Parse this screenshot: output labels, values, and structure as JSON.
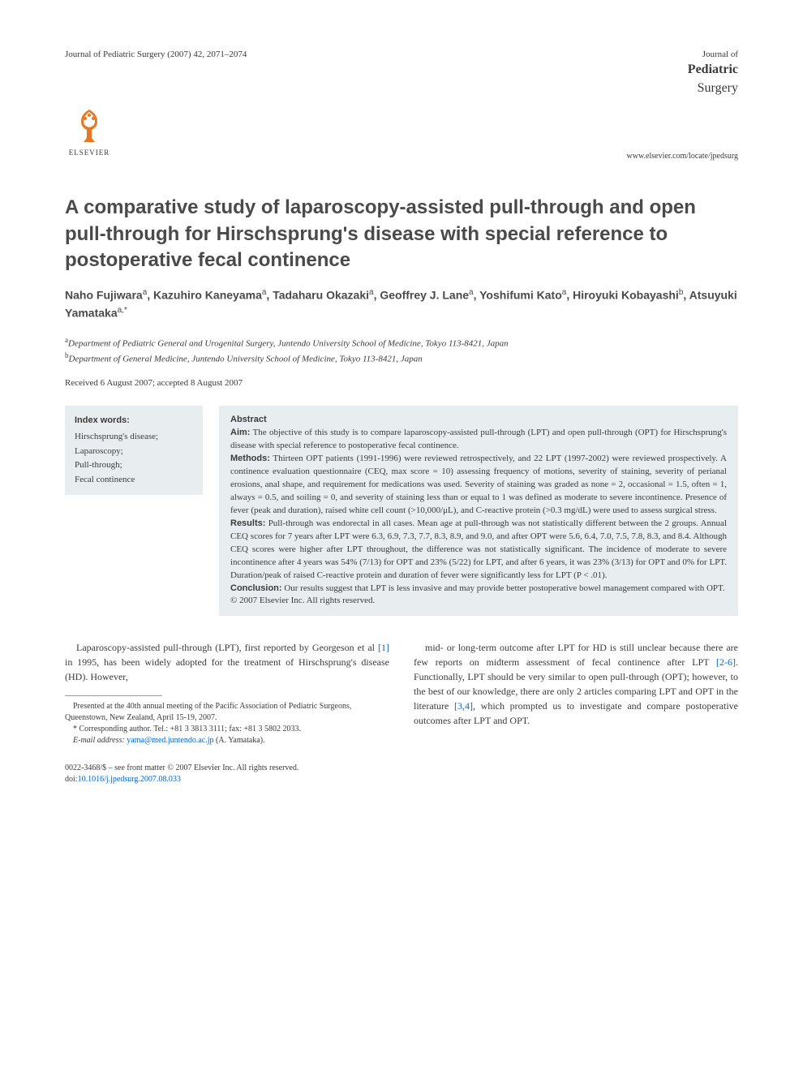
{
  "header": {
    "journal_ref": "Journal of Pediatric Surgery (2007) 42, 2071–2074",
    "journal_label_line1": "Journal of",
    "journal_label_line2": "Pediatric",
    "journal_label_line3": "Surgery",
    "publisher": "ELSEVIER",
    "locate_url": "www.elsevier.com/locate/jpedsurg"
  },
  "title": "A comparative study of laparoscopy-assisted pull-through and open pull-through for Hirschsprung's disease with special reference to postoperative fecal continence",
  "authors_html": "Naho Fujiwara<sup>a</sup>, Kazuhiro Kaneyama<sup>a</sup>, Tadaharu Okazaki<sup>a</sup>, Geoffrey J. Lane<sup>a</sup>, Yoshifumi Kato<sup>a</sup>, Hiroyuki Kobayashi<sup>b</sup>, Atsuyuki Yamataka<sup>a,*</sup>",
  "affiliations": [
    "Department of Pediatric General and Urogenital Surgery, Juntendo University School of Medicine, Tokyo 113-8421, Japan",
    "Department of General Medicine, Juntendo University School of Medicine, Tokyo 113-8421, Japan"
  ],
  "affiliation_markers": [
    "a",
    "b"
  ],
  "dates": "Received 6 August 2007; accepted 8 August 2007",
  "index": {
    "heading": "Index words:",
    "terms": [
      "Hirschsprung's disease;",
      "Laparoscopy;",
      "Pull-through;",
      "Fecal continence"
    ]
  },
  "abstract": {
    "heading": "Abstract",
    "aim_label": "Aim:",
    "aim": "The objective of this study is to compare laparoscopy-assisted pull-through (LPT) and open pull-through (OPT) for Hirschsprung's disease with special reference to postoperative fecal continence.",
    "methods_label": "Methods:",
    "methods": "Thirteen OPT patients (1991-1996) were reviewed retrospectively, and 22 LPT (1997-2002) were reviewed prospectively. A continence evaluation questionnaire (CEQ, max score = 10) assessing frequency of motions, severity of staining, severity of perianal erosions, anal shape, and requirement for medications was used. Severity of staining was graded as none = 2, occasional = 1.5, often = 1, always = 0.5, and soiling = 0, and severity of staining less than or equal to 1 was defined as moderate to severe incontinence. Presence of fever (peak and duration), raised white cell count (>10,000/μL), and C-reactive protein (>0.3 mg/dL) were used to assess surgical stress.",
    "results_label": "Results:",
    "results": "Pull-through was endorectal in all cases. Mean age at pull-through was not statistically different between the 2 groups. Annual CEQ scores for 7 years after LPT were 6.3, 6.9, 7.3, 7.7, 8.3, 8.9, and 9.0, and after OPT were 5.6, 6.4, 7.0, 7.5, 7.8, 8.3, and 8.4. Although CEQ scores were higher after LPT throughout, the difference was not statistically significant. The incidence of moderate to severe incontinence after 4 years was 54% (7/13) for OPT and 23% (5/22) for LPT, and after 6 years, it was 23% (3/13) for OPT and 0% for LPT. Duration/peak of raised C-reactive protein and duration of fever were significantly less for LPT (P < .01).",
    "conclusion_label": "Conclusion:",
    "conclusion": "Our results suggest that LPT is less invasive and may provide better postoperative bowel management compared with OPT.",
    "copyright": "© 2007 Elsevier Inc. All rights reserved."
  },
  "body": {
    "col1_p1_pre": "Laparoscopy-assisted pull-through (LPT), first reported by Georgeson et al ",
    "col1_ref1": "[1]",
    "col1_p1_post": " in 1995, has been widely adopted for the treatment of Hirschsprung's disease (HD). However,",
    "col2_p1_pre": "mid- or long-term outcome after LPT for HD is still unclear because there are few reports on midterm assessment of fecal continence after LPT ",
    "col2_ref2": "[2-6]",
    "col2_p1_mid": ". Functionally, LPT should be very similar to open pull-through (OPT); however, to the best of our knowledge, there are only 2 articles comparing LPT and OPT in the literature ",
    "col2_ref3": "[3,4]",
    "col2_p1_post": ", which prompted us to investigate and compare postoperative outcomes after LPT and OPT."
  },
  "footnotes": {
    "presented": "Presented at the 40th annual meeting of the Pacific Association of Pediatric Surgeons, Queenstown, New Zealand, April 15-19, 2007.",
    "corresponding": "* Corresponding author. Tel.: +81 3 3813 3111; fax: +81 3 5802 2033.",
    "email_label": "E-mail address:",
    "email": "yama@med.juntendo.ac.jp",
    "email_person": "(A. Yamataka)."
  },
  "bottom": {
    "issn_line": "0022-3468/$ – see front matter © 2007 Elsevier Inc. All rights reserved.",
    "doi_label": "doi:",
    "doi": "10.1016/j.jpedsurg.2007.08.033"
  },
  "colors": {
    "text": "#3a3a3a",
    "box_bg": "#e8eef0",
    "link": "#0066cc",
    "logo": "#e87722"
  }
}
